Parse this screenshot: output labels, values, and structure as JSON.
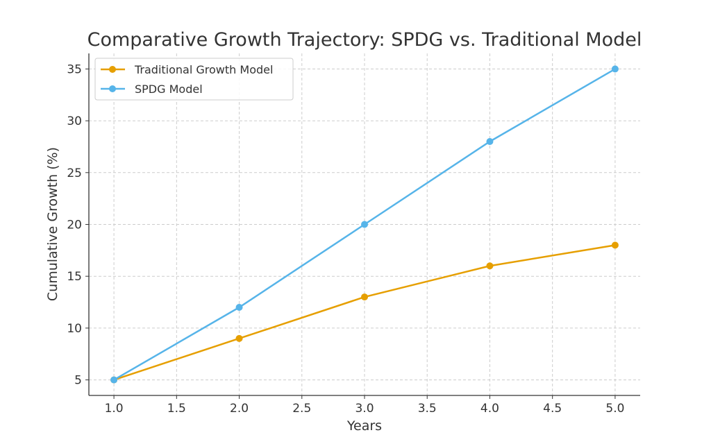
{
  "chart_data": {
    "type": "line",
    "title": "Comparative Growth Trajectory: SPDG vs. Traditional Model",
    "xlabel": "Years",
    "ylabel": "Cumulative Growth (%)",
    "x": [
      1,
      2,
      3,
      4,
      5
    ],
    "xlim": [
      0.8,
      5.2
    ],
    "ylim": [
      3.5,
      36.5
    ],
    "xticks": [
      "1.0",
      "1.5",
      "2.0",
      "2.5",
      "3.0",
      "3.5",
      "4.0",
      "4.5",
      "5.0"
    ],
    "yticks": [
      "5",
      "10",
      "15",
      "20",
      "25",
      "30",
      "35"
    ],
    "grid": true,
    "legend_position": "top-left",
    "series": [
      {
        "name": "Traditional Growth Model",
        "values": [
          5,
          9,
          13,
          16,
          18
        ],
        "color": "#E69F00",
        "marker": "circle"
      },
      {
        "name": "SPDG Model",
        "values": [
          5,
          12,
          20,
          28,
          35
        ],
        "color": "#56B4E9",
        "marker": "circle"
      }
    ]
  }
}
